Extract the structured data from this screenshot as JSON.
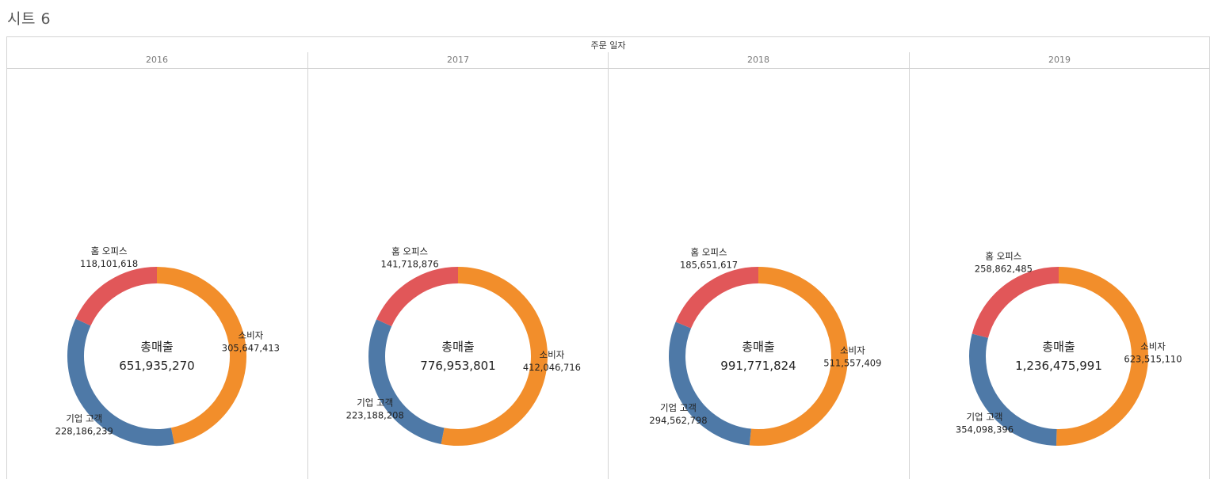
{
  "sheet_title": "시트 6",
  "colors": {
    "홈 오피스": "#e15759",
    "소비자": "#f28e2b",
    "기업 고객": "#4e79a7"
  },
  "chart_data": {
    "type": "pie",
    "title": "",
    "column_field": "주문 일자",
    "center_title": "총매출",
    "panels": [
      {
        "year": "2016",
        "total": "651,935,270",
        "slices": [
          {
            "segment": "소비자",
            "value": 305647413,
            "label": "305,647,413"
          },
          {
            "segment": "기업 고객",
            "value": 228186239,
            "label": "228,186,239"
          },
          {
            "segment": "홈 오피스",
            "value": 118101618,
            "label": "118,101,618"
          }
        ]
      },
      {
        "year": "2017",
        "total": "776,953,801",
        "slices": [
          {
            "segment": "소비자",
            "value": 412046716,
            "label": "412,046,716"
          },
          {
            "segment": "기업 고객",
            "value": 223188208,
            "label": "223,188,208"
          },
          {
            "segment": "홈 오피스",
            "value": 141718876,
            "label": "141,718,876"
          }
        ]
      },
      {
        "year": "2018",
        "total": "991,771,824",
        "slices": [
          {
            "segment": "소비자",
            "value": 511557409,
            "label": "511,557,409"
          },
          {
            "segment": "기업 고객",
            "value": 294562798,
            "label": "294,562,798"
          },
          {
            "segment": "홈 오피스",
            "value": 185651617,
            "label": "185,651,617"
          }
        ]
      },
      {
        "year": "2019",
        "total": "1,236,475,991",
        "slices": [
          {
            "segment": "소비자",
            "value": 623515110,
            "label": "623,515,110"
          },
          {
            "segment": "기업 고객",
            "value": 354098396,
            "label": "354,098,396"
          },
          {
            "segment": "홈 오피스",
            "value": 258862485,
            "label": "258,862,485"
          }
        ]
      }
    ]
  }
}
